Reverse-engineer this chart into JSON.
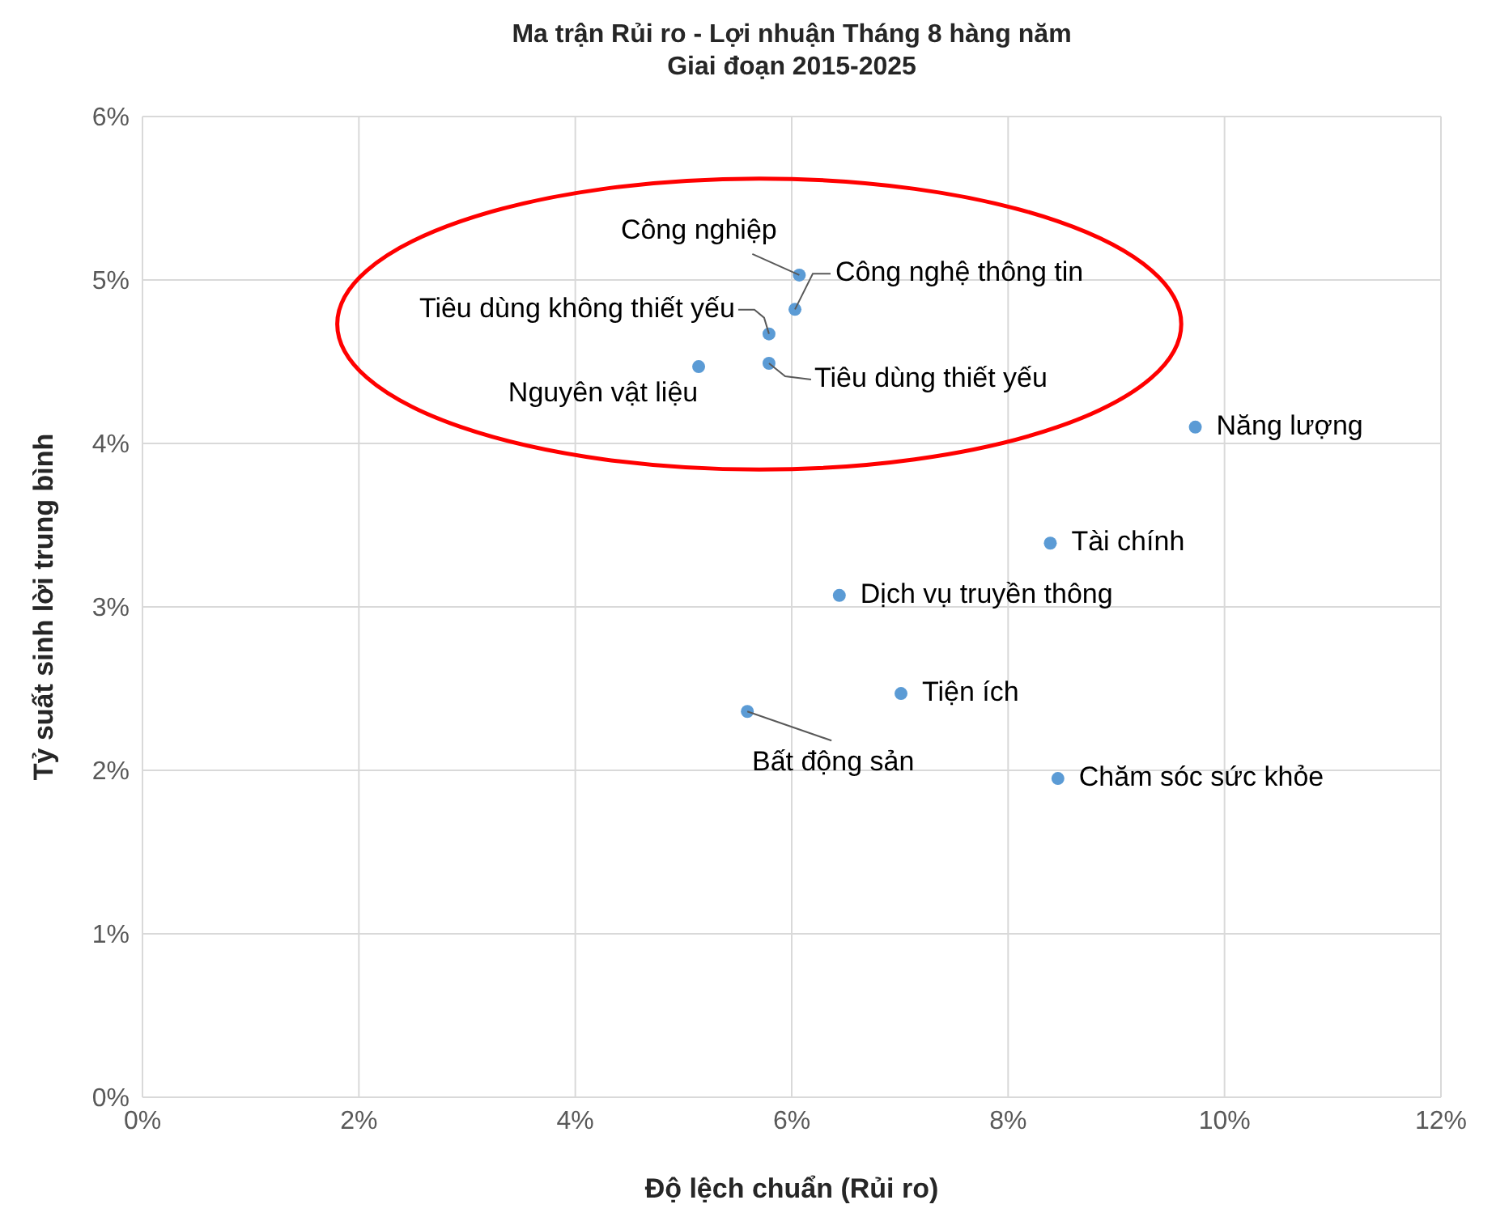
{
  "chart_data": {
    "type": "scatter",
    "title": "Ma trận Rủi ro - Lợi nhuận Tháng 8 hàng năm\nGiai đoạn 2015-2025",
    "xlabel": "Độ lệch chuẩn (Rủi ro)",
    "ylabel": "Tỷ suất sinh lời trung bình",
    "x": [
      6.07,
      6.03,
      5.79,
      5.79,
      5.14,
      9.73,
      8.39,
      6.44,
      7.01,
      5.59,
      8.46
    ],
    "values": [
      5.03,
      4.82,
      4.67,
      4.49,
      4.47,
      4.1,
      3.39,
      3.07,
      2.47,
      2.36,
      1.95
    ],
    "color": "#5b9bd5",
    "marker": "circle",
    "grid": true,
    "legend": false,
    "xlim": [
      0,
      12
    ],
    "ylim": [
      0,
      6
    ],
    "xticks": [
      {
        "value": 0,
        "label": "0%"
      },
      {
        "value": 2,
        "label": "2%"
      },
      {
        "value": 4,
        "label": "4%"
      },
      {
        "value": 6,
        "label": "6%"
      },
      {
        "value": 8,
        "label": "8%"
      },
      {
        "value": 10,
        "label": "10%"
      },
      {
        "value": 12,
        "label": "12%"
      }
    ],
    "yticks": [
      {
        "value": 0,
        "label": "0%"
      },
      {
        "value": 1,
        "label": "1%"
      },
      {
        "value": 2,
        "label": "2%"
      },
      {
        "value": 3,
        "label": "3%"
      },
      {
        "value": 4,
        "label": "4%"
      },
      {
        "value": 5,
        "label": "5%"
      },
      {
        "value": 6,
        "label": "6%"
      }
    ],
    "annotations": [
      {
        "text": "Công nghiệp",
        "x": 6.07,
        "y": 5.03
      },
      {
        "text": "Công nghệ thông tin",
        "x": 6.03,
        "y": 4.82
      },
      {
        "text": "Tiêu dùng không thiết yếu",
        "x": 5.79,
        "y": 4.67
      },
      {
        "text": "Tiêu dùng thiết yếu",
        "x": 5.79,
        "y": 4.49
      },
      {
        "text": "Nguyên vật liệu",
        "x": 5.14,
        "y": 4.47
      },
      {
        "text": "Năng lượng",
        "x": 9.73,
        "y": 4.1
      },
      {
        "text": "Tài chính",
        "x": 8.39,
        "y": 3.39
      },
      {
        "text": "Dịch vụ truyền thông",
        "x": 6.44,
        "y": 3.07
      },
      {
        "text": "Tiện ích",
        "x": 7.01,
        "y": 2.47
      },
      {
        "text": "Bất động sản",
        "x": 5.59,
        "y": 2.36
      },
      {
        "text": "Chăm sóc sức khỏe",
        "x": 8.46,
        "y": 1.95
      }
    ]
  }
}
